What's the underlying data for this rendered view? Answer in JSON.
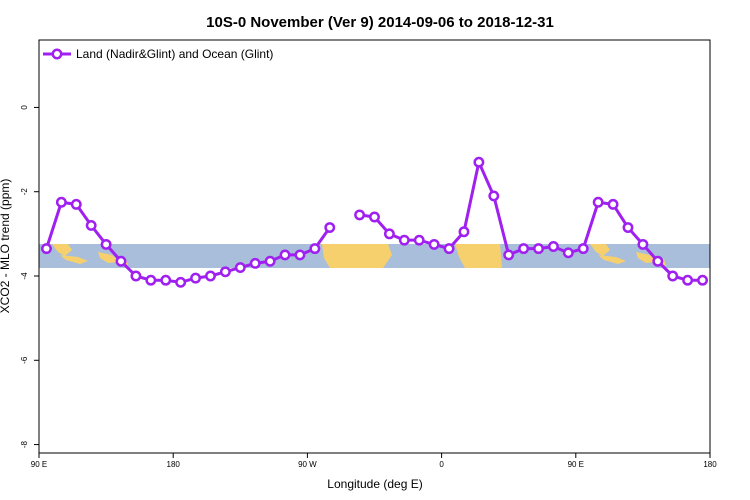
{
  "chart_data": {
    "type": "line",
    "title": "10S-0 November (Ver 9)   2014-09-06 to 2018-12-31",
    "xlabel": "Longitude (deg E)",
    "ylabel": "XCO2 - MLO trend (ppm)",
    "x_tick_labels": [
      "90 E",
      "180",
      "90 W",
      "0",
      "90 E",
      "180"
    ],
    "y_tick_labels": [
      "0",
      "-2",
      "-4",
      "-6",
      "-8"
    ],
    "y_ticks": [
      0,
      -2,
      -4,
      -6,
      -8
    ],
    "ylim": [
      -8.2,
      1.6
    ],
    "xlim": [
      0,
      450
    ],
    "grid": false,
    "legend_position": "top-left",
    "series": [
      {
        "name": "Land (Nadir&Glint) and Ocean (Glint)",
        "color": "#a020f0",
        "segments": [
          {
            "x": [
              5,
              15,
              25,
              35,
              45,
              55,
              65,
              75,
              85,
              95,
              105,
              115,
              125,
              135,
              145,
              155,
              165,
              175,
              185,
              195
            ],
            "y": [
              -3.35,
              -2.25,
              -2.3,
              -2.8,
              -3.25,
              -3.65,
              -4.0,
              -4.1,
              -4.1,
              -4.15,
              -4.05,
              -4.0,
              -3.9,
              -3.8,
              -3.7,
              -3.65,
              -3.5,
              -3.5,
              -3.35,
              -2.85
            ]
          },
          {
            "x": [
              215,
              225,
              235,
              245,
              255,
              265,
              275,
              285,
              295,
              305,
              315,
              325,
              335,
              345,
              355,
              365,
              375,
              385,
              395,
              405,
              415,
              425,
              435,
              445
            ],
            "y": [
              -2.55,
              -2.6,
              -3.0,
              -3.15,
              -3.15,
              -3.25,
              -3.35,
              -2.95,
              -1.3,
              -2.1,
              -3.5,
              -3.35,
              -3.35,
              -3.3,
              -3.45,
              -3.35,
              -2.25,
              -2.3,
              -2.85,
              -3.25,
              -3.65,
              -4.0,
              -4.1,
              -4.1
            ]
          }
        ]
      }
    ],
    "background_band": {
      "y_range": [
        -3.35,
        -3.9
      ],
      "ocean_color": "#a8bedb",
      "land_color": "#f7d06e"
    }
  }
}
